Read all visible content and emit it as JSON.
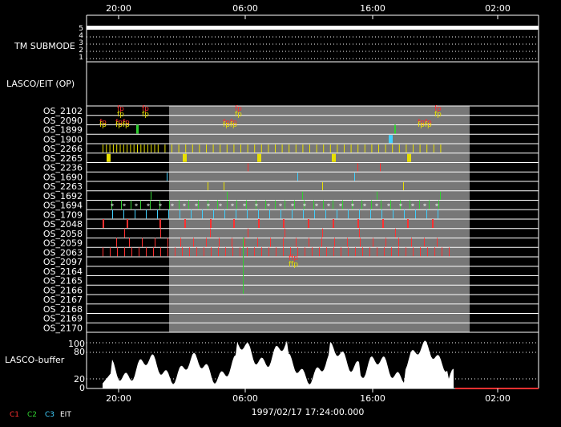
{
  "time_axis": {
    "ticks": [
      "20:00",
      "06:00",
      "16:00",
      "02:00"
    ],
    "timestamp": "1997/02/17 17:24:00.000"
  },
  "tm_submode": {
    "label": "TM SUBMODE",
    "levels": [
      "5",
      "4",
      "3",
      "2",
      "1"
    ]
  },
  "section_label": "LASCO/EIT (OP)",
  "rows": [
    "OS_2102",
    "OS_2090",
    "OS_1899",
    "OS_1900",
    "OS_2266",
    "OS_2265",
    "OS_2236",
    "OS_1690",
    "OS_2263",
    "OS_1692",
    "OS_1694",
    "OS_1709",
    "OS_2048",
    "OS_2058",
    "OS_2059",
    "OS_2063",
    "OS_2097",
    "OS_2164",
    "OS_2165",
    "OS_2166",
    "OS_2167",
    "OS_2168",
    "OS_2169",
    "OS_2170"
  ],
  "row_annotations": {
    "fp": "fp",
    "fpfp": "fpfp",
    "ffp": "ffp"
  },
  "buffer": {
    "label": "LASCO-buffer",
    "ticks": [
      "100",
      "80",
      "20",
      "0"
    ]
  },
  "legend": {
    "c1": "C1",
    "c2": "C2",
    "c3": "C3",
    "eit": "EIT"
  },
  "colors": {
    "c1": "#ff3030",
    "c2": "#30d030",
    "c3": "#40d0ff",
    "eit": "#ffffff",
    "yellow": "#e8e000",
    "window": "#777777"
  }
}
